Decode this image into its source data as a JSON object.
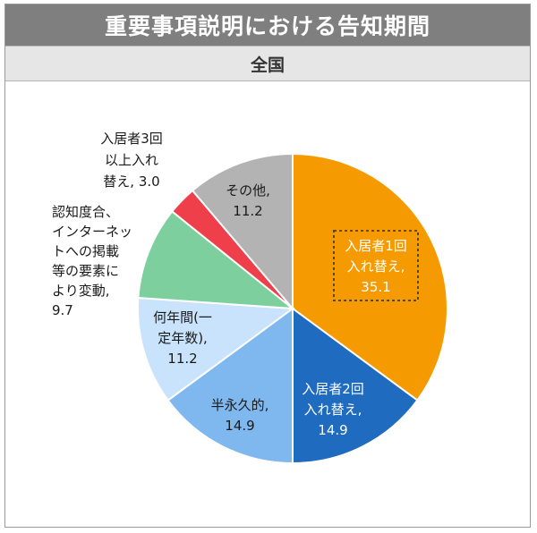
{
  "title": "重要事項説明における告知期間",
  "subtitle": "全国",
  "colors": {
    "title_bg": "#7f7f7f",
    "subtitle_bg": "#e6e6e6",
    "highlight_box": "#5a4a1a"
  },
  "chart_data": {
    "type": "pie",
    "start": "12 o'clock",
    "direction": "clockwise",
    "slices": [
      {
        "label_lines": [
          "入居者1回",
          "入れ替え,",
          "35.1"
        ],
        "value": 35.1,
        "color": "#f59a00",
        "text_color": "#ffffff",
        "highlighted": true
      },
      {
        "label_lines": [
          "入居者2回",
          "入れ替え,",
          "14.9"
        ],
        "value": 14.9,
        "color": "#1f6bbf",
        "text_color": "#ffffff"
      },
      {
        "label_lines": [
          "半永久的,",
          "14.9"
        ],
        "value": 14.9,
        "color": "#7fb8ee",
        "text_color": "#1a1a1a"
      },
      {
        "label_lines": [
          "何年間(一",
          "定年数),",
          "11.2"
        ],
        "value": 11.2,
        "color": "#c8e3fb",
        "text_color": "#1a1a1a"
      },
      {
        "label_lines": [
          "認知度合、",
          "インターネッ",
          "トへの掲載",
          "等の要素に",
          "より変動,",
          "9.7"
        ],
        "value": 9.7,
        "color": "#7dcf9e",
        "text_color": "#1a1a1a"
      },
      {
        "label_lines": [
          "入居者3回",
          "以上入れ",
          "替え, 3.0"
        ],
        "value": 3.0,
        "color": "#ee3f4a",
        "text_color": "#1a1a1a"
      },
      {
        "label_lines": [
          "その他,",
          "11.2"
        ],
        "value": 11.2,
        "color": "#b3b3b3",
        "text_color": "#1a1a1a"
      }
    ]
  }
}
